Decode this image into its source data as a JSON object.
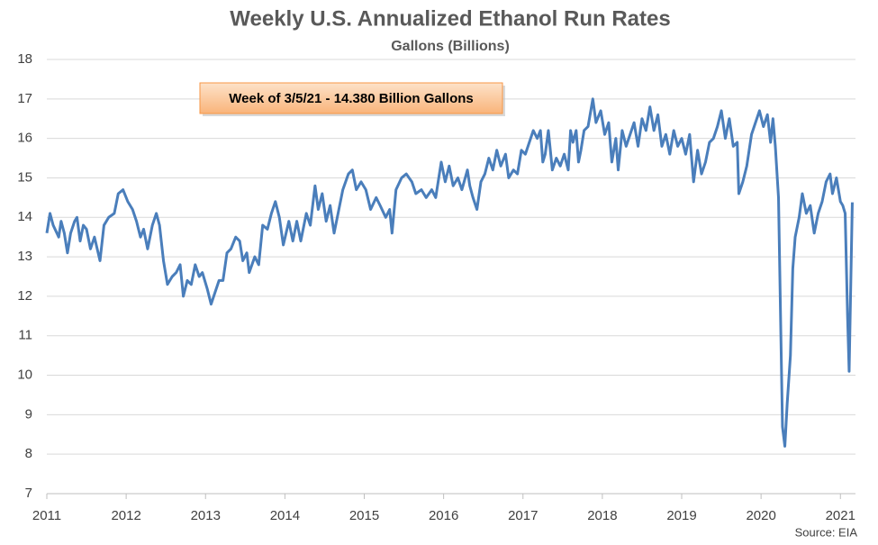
{
  "chart_data": {
    "type": "line",
    "title": "Weekly U.S. Annualized Ethanol Run Rates",
    "subtitle": "Gallons (Billions)",
    "annotation": "Week of 3/5/21 - 14.380 Billion Gallons",
    "source": "Source: EIA",
    "x": [
      2011.0,
      2011.04,
      2011.08,
      2011.15,
      2011.18,
      2011.22,
      2011.26,
      2011.3,
      2011.35,
      2011.38,
      2011.42,
      2011.46,
      2011.5,
      2011.55,
      2011.6,
      2011.67,
      2011.72,
      2011.78,
      2011.85,
      2011.9,
      2011.96,
      2012.02,
      2012.08,
      2012.13,
      2012.18,
      2012.22,
      2012.27,
      2012.33,
      2012.38,
      2012.42,
      2012.47,
      2012.52,
      2012.58,
      2012.63,
      2012.68,
      2012.72,
      2012.77,
      2012.82,
      2012.87,
      2012.92,
      2012.96,
      2013.02,
      2013.07,
      2013.12,
      2013.17,
      2013.22,
      2013.27,
      2013.32,
      2013.38,
      2013.43,
      2013.47,
      2013.52,
      2013.55,
      2013.62,
      2013.67,
      2013.72,
      2013.78,
      2013.83,
      2013.88,
      2013.93,
      2013.98,
      2014.05,
      2014.1,
      2014.15,
      2014.2,
      2014.27,
      2014.32,
      2014.38,
      2014.42,
      2014.47,
      2014.52,
      2014.57,
      2014.62,
      2014.68,
      2014.73,
      2014.8,
      2014.85,
      2014.9,
      2014.96,
      2015.02,
      2015.08,
      2015.15,
      2015.2,
      2015.27,
      2015.32,
      2015.35,
      2015.4,
      2015.47,
      2015.53,
      2015.6,
      2015.65,
      2015.72,
      2015.78,
      2015.85,
      2015.9,
      2015.97,
      2016.02,
      2016.07,
      2016.12,
      2016.18,
      2016.23,
      2016.3,
      2016.33,
      2016.37,
      2016.42,
      2016.47,
      2016.52,
      2016.57,
      2016.62,
      2016.67,
      2016.72,
      2016.78,
      2016.82,
      2016.88,
      2016.93,
      2016.98,
      2017.03,
      2017.08,
      2017.13,
      2017.18,
      2017.22,
      2017.25,
      2017.28,
      2017.32,
      2017.37,
      2017.42,
      2017.47,
      2017.52,
      2017.57,
      2017.6,
      2017.63,
      2017.67,
      2017.7,
      2017.73,
      2017.77,
      2017.82,
      2017.88,
      2017.92,
      2017.98,
      2018.03,
      2018.08,
      2018.12,
      2018.17,
      2018.2,
      2018.25,
      2018.3,
      2018.35,
      2018.4,
      2018.45,
      2018.5,
      2018.55,
      2018.6,
      2018.65,
      2018.7,
      2018.75,
      2018.8,
      2018.85,
      2018.9,
      2018.95,
      2019.0,
      2019.05,
      2019.1,
      2019.15,
      2019.2,
      2019.25,
      2019.3,
      2019.35,
      2019.4,
      2019.45,
      2019.5,
      2019.55,
      2019.6,
      2019.65,
      2019.7,
      2019.72,
      2019.77,
      2019.82,
      2019.88,
      2019.93,
      2019.98,
      2020.03,
      2020.08,
      2020.12,
      2020.15,
      2020.18,
      2020.22,
      2020.25,
      2020.27,
      2020.3,
      2020.33,
      2020.37,
      2020.4,
      2020.43,
      2020.48,
      2020.52,
      2020.57,
      2020.62,
      2020.67,
      2020.72,
      2020.77,
      2020.82,
      2020.87,
      2020.9,
      2020.95,
      2021.0,
      2021.03,
      2021.06,
      2021.09,
      2021.11,
      2021.15
    ],
    "series": [
      {
        "name": "Run rate",
        "color": "#4a7ebb",
        "values": [
          13.6,
          14.1,
          13.8,
          13.5,
          13.9,
          13.6,
          13.1,
          13.6,
          13.9,
          14.0,
          13.4,
          13.8,
          13.7,
          13.2,
          13.5,
          12.9,
          13.8,
          14.0,
          14.1,
          14.6,
          14.7,
          14.4,
          14.2,
          13.9,
          13.5,
          13.7,
          13.2,
          13.8,
          14.1,
          13.8,
          12.9,
          12.3,
          12.5,
          12.6,
          12.8,
          12.0,
          12.4,
          12.3,
          12.8,
          12.5,
          12.6,
          12.2,
          11.8,
          12.1,
          12.4,
          12.4,
          13.1,
          13.2,
          13.5,
          13.4,
          12.9,
          13.1,
          12.6,
          13.0,
          12.8,
          13.8,
          13.7,
          14.1,
          14.4,
          14.0,
          13.3,
          13.9,
          13.4,
          13.9,
          13.4,
          14.1,
          13.8,
          14.8,
          14.2,
          14.6,
          13.9,
          14.3,
          13.6,
          14.2,
          14.7,
          15.1,
          15.2,
          14.7,
          14.9,
          14.7,
          14.2,
          14.5,
          14.3,
          14.0,
          14.2,
          13.6,
          14.7,
          15.0,
          15.1,
          14.9,
          14.6,
          14.7,
          14.5,
          14.7,
          14.5,
          15.4,
          14.9,
          15.3,
          14.8,
          15.0,
          14.7,
          15.2,
          14.8,
          14.5,
          14.2,
          14.9,
          15.1,
          15.5,
          15.2,
          15.7,
          15.3,
          15.6,
          15.0,
          15.2,
          15.1,
          15.7,
          15.6,
          15.9,
          16.2,
          16.0,
          16.2,
          15.4,
          15.6,
          16.2,
          15.2,
          15.5,
          15.3,
          15.6,
          15.2,
          16.2,
          15.9,
          16.2,
          15.4,
          15.7,
          16.2,
          16.3,
          17.0,
          16.4,
          16.7,
          16.1,
          16.4,
          15.4,
          16.0,
          15.2,
          16.2,
          15.8,
          16.1,
          16.4,
          15.8,
          16.5,
          16.2,
          16.8,
          16.2,
          16.6,
          15.8,
          16.1,
          15.6,
          16.2,
          15.8,
          16.0,
          15.6,
          16.1,
          14.9,
          15.7,
          15.1,
          15.4,
          15.9,
          16.0,
          16.3,
          16.7,
          16.0,
          16.5,
          15.8,
          15.9,
          14.6,
          14.9,
          15.3,
          16.1,
          16.4,
          16.7,
          16.3,
          16.6,
          15.9,
          16.5,
          15.8,
          14.5,
          11.0,
          8.7,
          8.2,
          9.3,
          10.5,
          12.7,
          13.5,
          14.0,
          14.6,
          14.1,
          14.3,
          13.6,
          14.1,
          14.4,
          14.9,
          15.1,
          14.6,
          15.0,
          14.4,
          14.3,
          14.1,
          11.5,
          10.1,
          14.38
        ]
      }
    ],
    "xlim": [
      2011,
      2021.19
    ],
    "xticks": [
      2011,
      2012,
      2013,
      2014,
      2015,
      2016,
      2017,
      2018,
      2019,
      2020,
      2021
    ],
    "ylim": [
      7,
      18
    ],
    "yticks": [
      7,
      8,
      9,
      10,
      11,
      12,
      13,
      14,
      15,
      16,
      17,
      18
    ],
    "grid": true
  }
}
